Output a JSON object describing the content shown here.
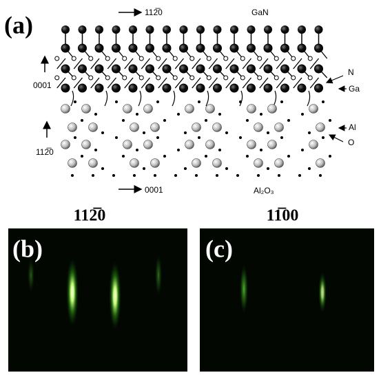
{
  "panel_a": {
    "label": "(a)",
    "top_direction": "112̅0",
    "top_material": "GaN",
    "left_upper_direction": "0001",
    "left_lower_direction": "112̅0",
    "bottom_direction": "0001",
    "bottom_material": "Al₂O₃",
    "atoms": {
      "n": "N",
      "ga": "Ga",
      "al": "Al",
      "o": "O"
    }
  },
  "panel_b": {
    "label": "(b)",
    "direction": "112̅0"
  },
  "panel_c": {
    "label": "(c)",
    "direction": "11̅00"
  }
}
